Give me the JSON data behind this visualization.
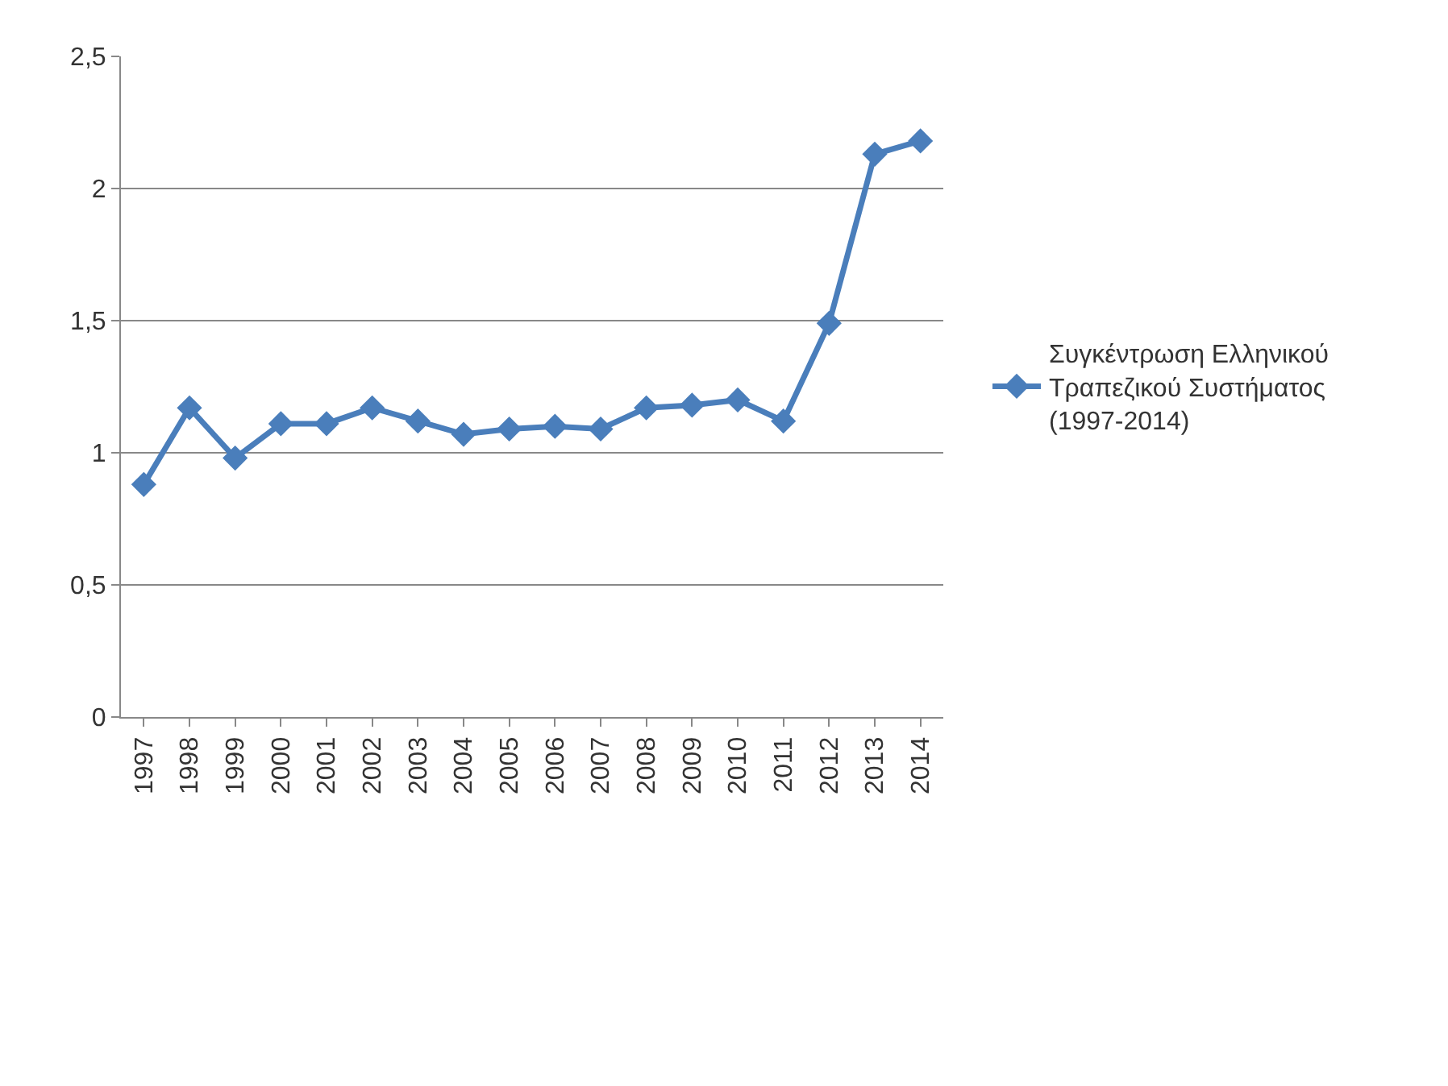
{
  "chart_data": {
    "type": "line",
    "categories": [
      "1997",
      "1998",
      "1999",
      "2000",
      "2001",
      "2002",
      "2003",
      "2004",
      "2005",
      "2006",
      "2007",
      "2008",
      "2009",
      "2010",
      "2011",
      "2012",
      "2013",
      "2014"
    ],
    "series": [
      {
        "name": "Συγκέντρωση Ελληνικού Τραπεζικού Συστήματος (1997-2014)",
        "color": "#4a7ebb",
        "values": [
          0.88,
          1.17,
          0.98,
          1.11,
          1.11,
          1.17,
          1.12,
          1.07,
          1.09,
          1.1,
          1.09,
          1.17,
          1.18,
          1.2,
          1.12,
          1.49,
          2.13,
          2.18
        ]
      }
    ],
    "ylim": [
      0,
      2.5
    ],
    "yticks": [
      0,
      {
        "value": 0.5,
        "label": "0,5"
      },
      1,
      {
        "value": 1.5,
        "label": "1,5"
      },
      2,
      {
        "value": 2.5,
        "label": "2,5"
      }
    ],
    "grid": "y",
    "legend": "right",
    "marker": "diamond",
    "line_style": "solid"
  }
}
